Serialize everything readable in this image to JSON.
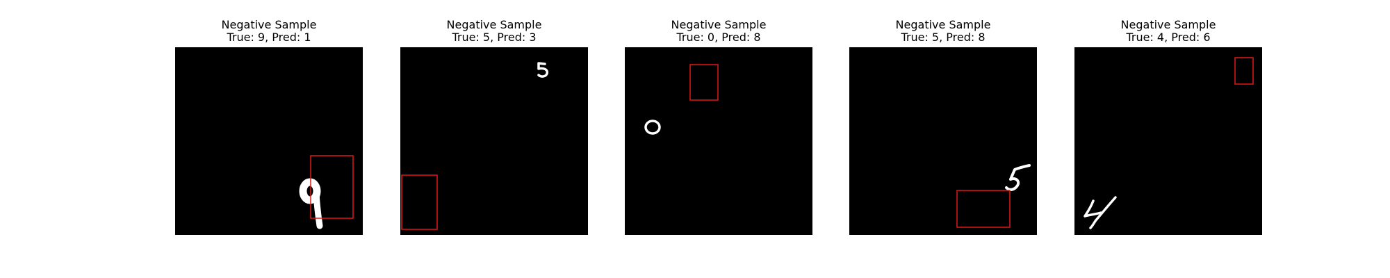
{
  "figure": {
    "panels": [
      {
        "heading": "Negative Sample",
        "caption": "True: 9, Pred: 1",
        "digit": "9"
      },
      {
        "heading": "Negative Sample",
        "caption": "True: 5, Pred: 3",
        "digit": "5"
      },
      {
        "heading": "Negative Sample",
        "caption": "True: 0, Pred: 8",
        "digit": "0"
      },
      {
        "heading": "Negative Sample",
        "caption": "True: 5, Pred: 8",
        "digit": "5"
      },
      {
        "heading": "Negative Sample",
        "caption": "True: 4, Pred: 6",
        "digit": "4"
      }
    ],
    "colors": {
      "background": "#000000",
      "digit": "#ffffff",
      "box": "#e01818"
    }
  }
}
